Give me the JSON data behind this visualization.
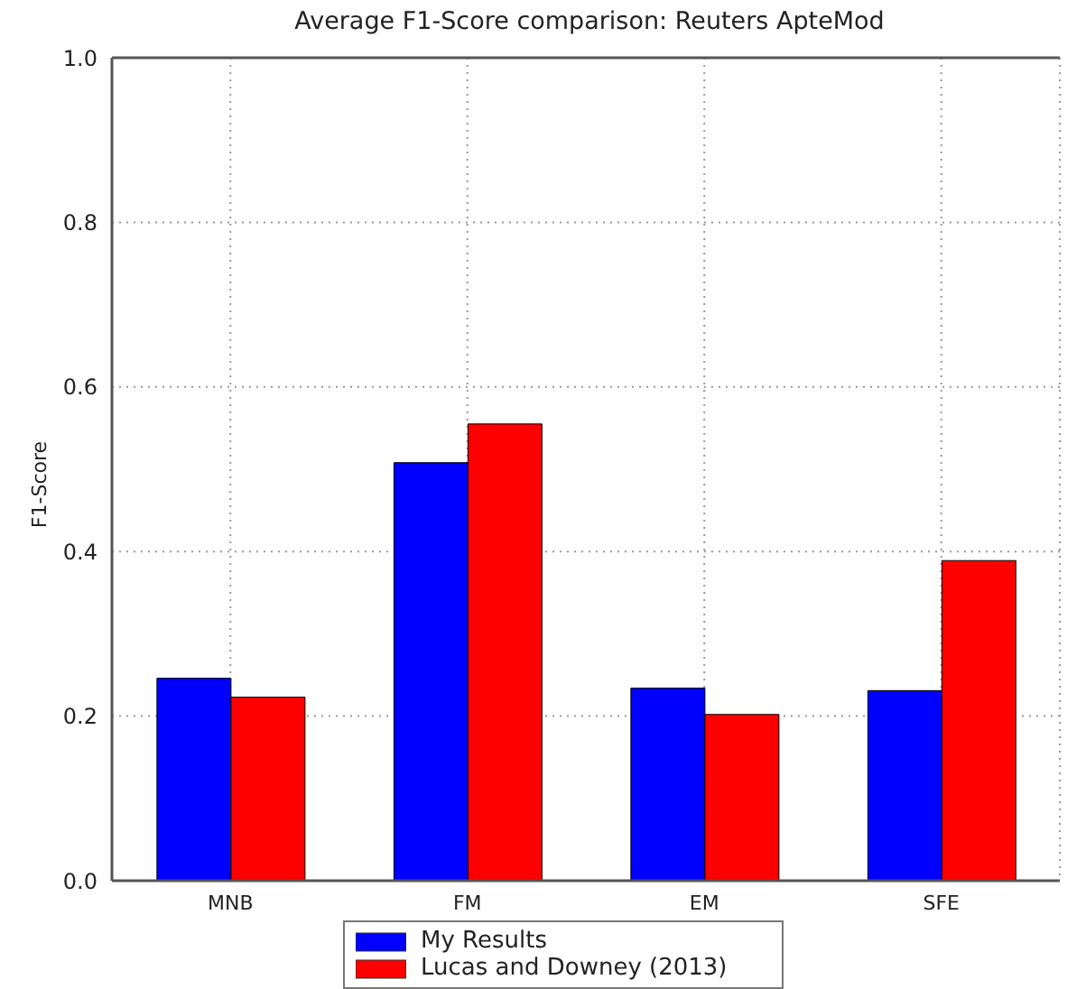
{
  "chart_data": {
    "type": "bar",
    "title": "Average F1-Score comparison: Reuters ApteMod",
    "ylabel": "F1-Score",
    "categories": [
      "MNB",
      "FM",
      "EM",
      "SFE"
    ],
    "series": [
      {
        "name": "My Results",
        "color": "#0000ff",
        "values": [
          0.246,
          0.508,
          0.234,
          0.231
        ]
      },
      {
        "name": "Lucas and Downey (2013)",
        "color": "#ff0000",
        "values": [
          0.223,
          0.555,
          0.202,
          0.389
        ]
      }
    ],
    "ylim": [
      0,
      1
    ],
    "yticks": [
      {
        "value": 0,
        "label": "0.0"
      },
      {
        "value": 0.2,
        "label": "0.2"
      },
      {
        "value": 0.4,
        "label": "0.4"
      },
      {
        "value": 0.6,
        "label": "0.6"
      },
      {
        "value": 0.8,
        "label": "0.8"
      },
      {
        "value": 1,
        "label": "1.0"
      }
    ],
    "grid": true,
    "legend": "bottom"
  }
}
